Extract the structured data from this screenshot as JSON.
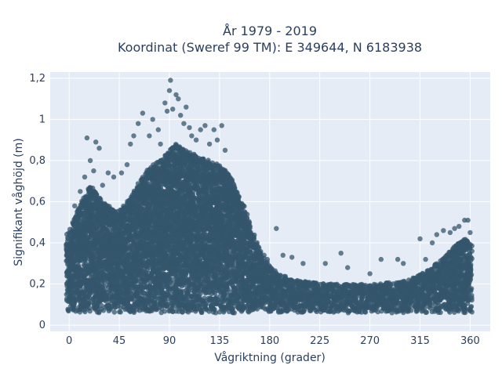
{
  "chart_data": {
    "type": "scatter",
    "title_lines": [
      "År 1979 - 2019",
      "Koordinat (Sweref 99 TM): E 349644, N 6183938"
    ],
    "xlabel": "Vågriktning (grader)",
    "ylabel": "Signifikant våghöjd (m)",
    "xlim": [
      -17,
      378
    ],
    "ylim": [
      -0.03,
      1.23
    ],
    "x_ticks": [
      0,
      45,
      90,
      135,
      180,
      225,
      270,
      315,
      360
    ],
    "y_ticks": [
      0,
      0.2,
      0.4,
      0.6,
      0.8,
      1,
      1.2
    ],
    "y_tick_labels": [
      "0",
      "0,2",
      "0,4",
      "0,6",
      "0,8",
      "1",
      "1,2"
    ],
    "grid": true,
    "marker_color": "#34566c",
    "plot_background": "#e5ecf6",
    "envelope": {
      "x": [
        0,
        10,
        20,
        30,
        45,
        55,
        65,
        75,
        85,
        95,
        105,
        115,
        125,
        135,
        145,
        155,
        165,
        175,
        185,
        200,
        215,
        230,
        245,
        260,
        275,
        290,
        305,
        320,
        335,
        345,
        355,
        360
      ],
      "lower": [
        0.06,
        0.06,
        0.06,
        0.06,
        0.06,
        0.06,
        0.06,
        0.06,
        0.06,
        0.06,
        0.06,
        0.06,
        0.06,
        0.06,
        0.06,
        0.06,
        0.06,
        0.06,
        0.06,
        0.06,
        0.06,
        0.06,
        0.06,
        0.06,
        0.06,
        0.06,
        0.06,
        0.06,
        0.06,
        0.06,
        0.06,
        0.06
      ],
      "upper": [
        0.45,
        0.6,
        0.68,
        0.6,
        0.55,
        0.62,
        0.72,
        0.78,
        0.82,
        0.88,
        0.85,
        0.82,
        0.8,
        0.78,
        0.72,
        0.6,
        0.45,
        0.32,
        0.26,
        0.22,
        0.21,
        0.2,
        0.2,
        0.2,
        0.2,
        0.21,
        0.22,
        0.26,
        0.32,
        0.38,
        0.42,
        0.4
      ]
    },
    "outliers": [
      [
        5,
        0.58
      ],
      [
        10,
        0.65
      ],
      [
        14,
        0.72
      ],
      [
        16,
        0.91
      ],
      [
        19,
        0.8
      ],
      [
        22,
        0.75
      ],
      [
        24,
        0.89
      ],
      [
        27,
        0.86
      ],
      [
        30,
        0.68
      ],
      [
        35,
        0.74
      ],
      [
        40,
        0.72
      ],
      [
        47,
        0.74
      ],
      [
        52,
        0.78
      ],
      [
        55,
        0.88
      ],
      [
        58,
        0.92
      ],
      [
        62,
        0.98
      ],
      [
        66,
        1.03
      ],
      [
        72,
        0.92
      ],
      [
        75,
        1.0
      ],
      [
        80,
        0.95
      ],
      [
        82,
        0.88
      ],
      [
        86,
        1.08
      ],
      [
        88,
        1.04
      ],
      [
        90,
        1.14
      ],
      [
        91,
        1.19
      ],
      [
        93,
        1.05
      ],
      [
        96,
        1.12
      ],
      [
        98,
        1.1
      ],
      [
        100,
        1.02
      ],
      [
        103,
        0.98
      ],
      [
        105,
        1.06
      ],
      [
        108,
        0.96
      ],
      [
        110,
        0.92
      ],
      [
        114,
        0.9
      ],
      [
        118,
        0.95
      ],
      [
        122,
        0.97
      ],
      [
        126,
        0.88
      ],
      [
        130,
        0.95
      ],
      [
        133,
        0.9
      ],
      [
        137,
        0.97
      ],
      [
        140,
        0.85
      ],
      [
        144,
        0.72
      ],
      [
        148,
        0.68
      ],
      [
        152,
        0.6
      ],
      [
        156,
        0.58
      ],
      [
        160,
        0.5
      ],
      [
        163,
        0.44
      ],
      [
        166,
        0.42
      ],
      [
        170,
        0.38
      ],
      [
        175,
        0.34
      ],
      [
        178,
        0.32
      ],
      [
        186,
        0.47
      ],
      [
        192,
        0.34
      ],
      [
        200,
        0.33
      ],
      [
        210,
        0.3
      ],
      [
        230,
        0.3
      ],
      [
        244,
        0.35
      ],
      [
        250,
        0.28
      ],
      [
        270,
        0.25
      ],
      [
        280,
        0.32
      ],
      [
        295,
        0.32
      ],
      [
        300,
        0.3
      ],
      [
        315,
        0.42
      ],
      [
        320,
        0.32
      ],
      [
        326,
        0.4
      ],
      [
        330,
        0.44
      ],
      [
        336,
        0.46
      ],
      [
        342,
        0.45
      ],
      [
        346,
        0.47
      ],
      [
        350,
        0.48
      ],
      [
        355,
        0.51
      ],
      [
        358,
        0.51
      ],
      [
        360,
        0.45
      ],
      [
        0,
        0.38
      ],
      [
        -2,
        0.12
      ]
    ]
  }
}
